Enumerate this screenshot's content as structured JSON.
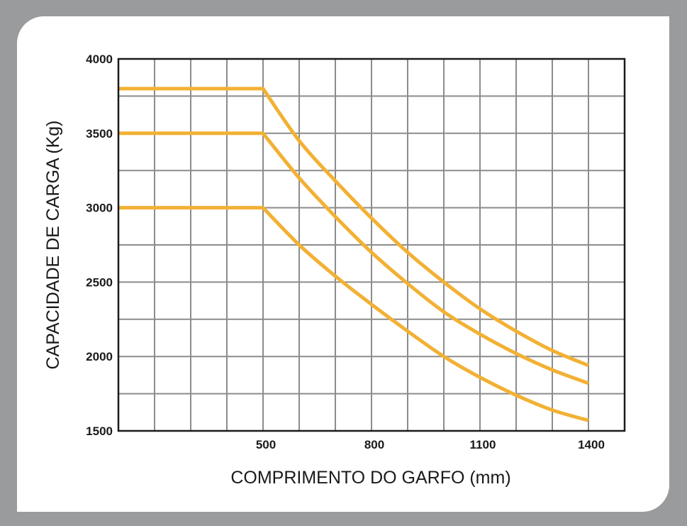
{
  "chart_data": {
    "type": "line",
    "xlabel": "COMPRIMENTO DO GARFO (mm)",
    "ylabel": "CAPACIDADE DE CARGA (Kg)",
    "xlim": [
      100,
      1500
    ],
    "ylim": [
      1500,
      4000
    ],
    "x_ticks": [
      500,
      800,
      1100,
      1400
    ],
    "x_tick_labels": [
      "500",
      "800",
      "1100",
      "1400"
    ],
    "y_ticks": [
      1500,
      2000,
      2500,
      3000,
      3500,
      4000
    ],
    "y_tick_labels": [
      "1500",
      "2000",
      "2500",
      "3000",
      "3500",
      "4000"
    ],
    "x_grid_step": 100,
    "y_grid_step": 250,
    "grid": true,
    "line_color": "#f2b134",
    "grid_color": "#8c8c8c",
    "series": [
      {
        "x": [
          100,
          500,
          600,
          700,
          800,
          900,
          1000,
          1100,
          1200,
          1300,
          1400
        ],
        "values": [
          3800,
          3800,
          3450,
          3180,
          2930,
          2700,
          2500,
          2320,
          2170,
          2040,
          1940
        ]
      },
      {
        "x": [
          100,
          500,
          600,
          700,
          800,
          900,
          1000,
          1100,
          1200,
          1300,
          1400
        ],
        "values": [
          3500,
          3500,
          3200,
          2940,
          2700,
          2490,
          2300,
          2150,
          2020,
          1910,
          1820
        ]
      },
      {
        "x": [
          100,
          500,
          600,
          700,
          800,
          900,
          1000,
          1100,
          1200,
          1300,
          1400
        ],
        "values": [
          3000,
          3000,
          2750,
          2540,
          2350,
          2170,
          2000,
          1860,
          1740,
          1640,
          1570
        ]
      }
    ]
  }
}
